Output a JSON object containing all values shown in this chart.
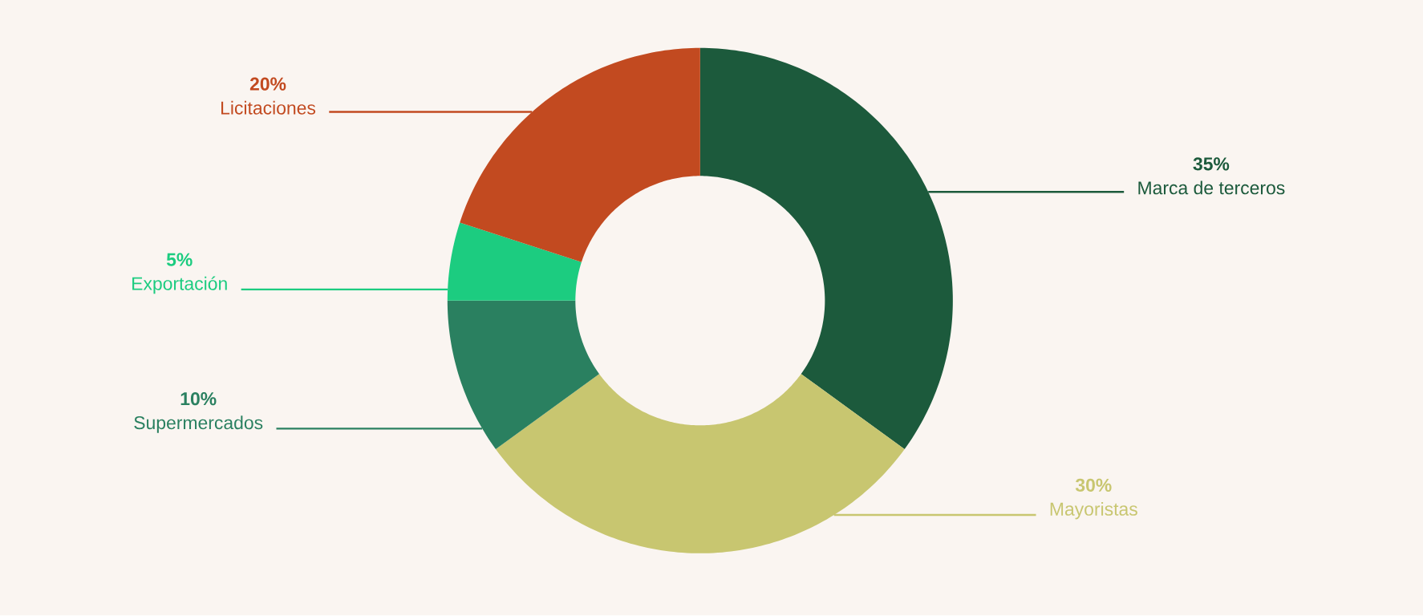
{
  "chart_data": {
    "type": "donut",
    "categories": [
      "Marca de terceros",
      "Mayoristas",
      "Supermercados",
      "Exportación",
      "Licitaciones"
    ],
    "values": [
      35,
      30,
      10,
      5,
      20
    ],
    "colors": [
      "#1c5a3c",
      "#c8c670",
      "#2a8060",
      "#1ccc80",
      "#c24a20"
    ],
    "value_labels": [
      "35%",
      "30%",
      "10%",
      "5%",
      "20%"
    ]
  }
}
